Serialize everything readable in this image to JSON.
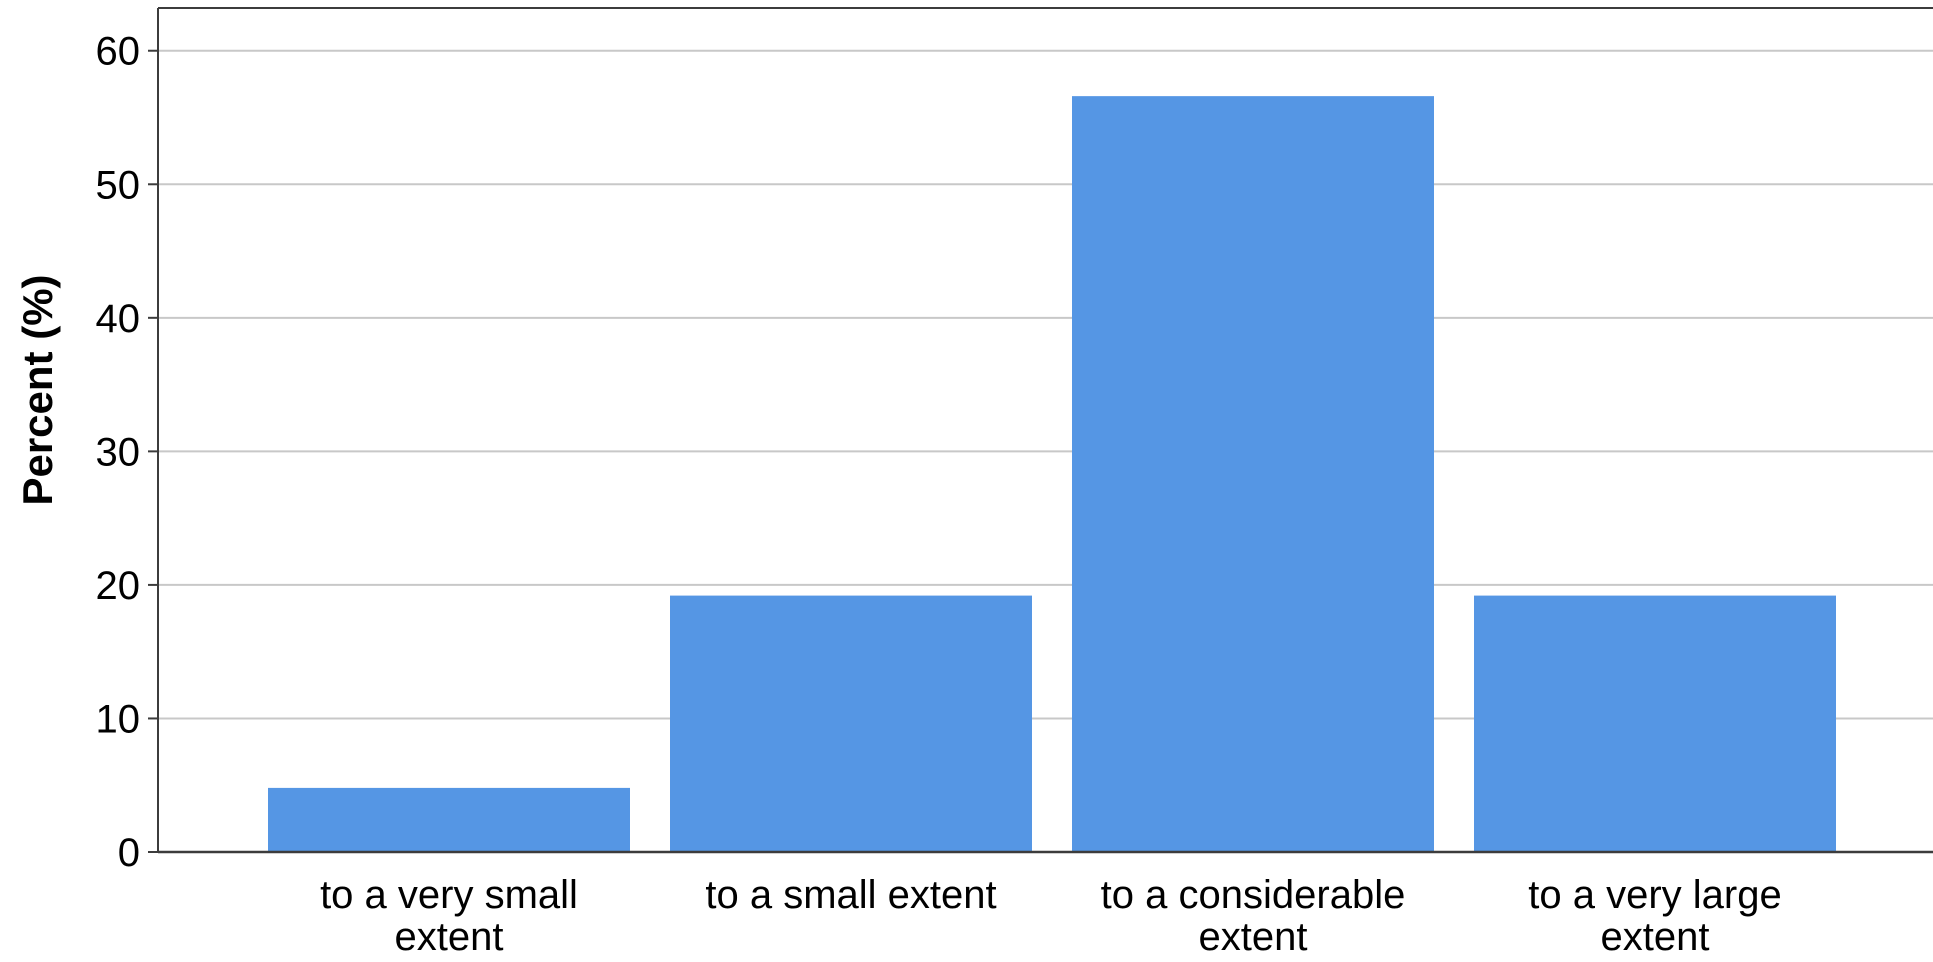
{
  "chart_data": {
    "type": "bar",
    "categories": [
      [
        "to a very small",
        "extent"
      ],
      [
        "to a small extent"
      ],
      [
        "to a considerable",
        "extent"
      ],
      [
        "to a very large",
        "extent"
      ]
    ],
    "values": [
      4.8,
      19.2,
      56.6,
      19.2
    ],
    "ylabel": "Percent (%)",
    "xlabel": "",
    "ylim": [
      0,
      60
    ],
    "yticks": [
      0,
      10,
      20,
      30,
      40,
      50,
      60
    ],
    "grid": true,
    "legend": "none",
    "colors": {
      "bar": "#5596e4",
      "grid": "#c8c8c8",
      "axis": "#3c3c3c"
    }
  }
}
